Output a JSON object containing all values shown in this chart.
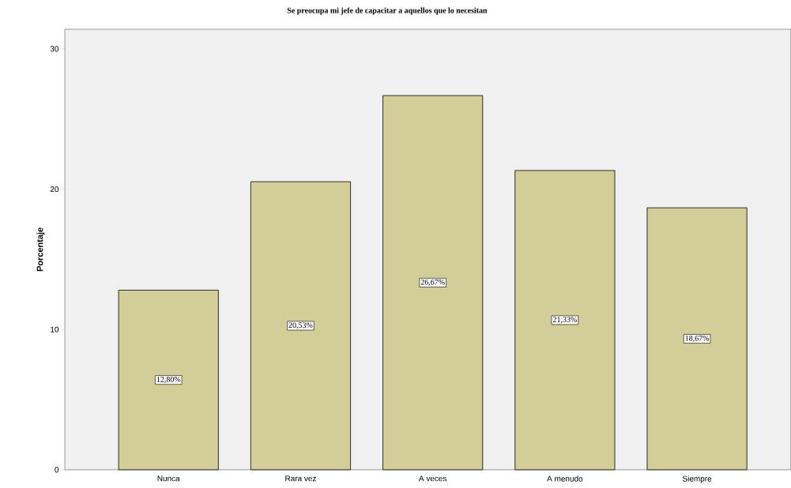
{
  "chart_data": {
    "type": "bar",
    "title": "Se preocupa mi jefe de capacitar a aquellos que lo necesitan",
    "ylabel": "Porcentaje",
    "categories": [
      "Nunca",
      "Rara vez",
      "A veces",
      "A menudo",
      "Siempre"
    ],
    "values": [
      12.8,
      20.53,
      26.67,
      21.33,
      18.67
    ],
    "value_labels": [
      "12,80%",
      "20,53%",
      "26,67%",
      "21,33%",
      "18,67%"
    ],
    "color": "#d3ce97",
    "ylim": [
      0,
      31.4
    ],
    "yticks": [
      0,
      10,
      20,
      30
    ]
  }
}
